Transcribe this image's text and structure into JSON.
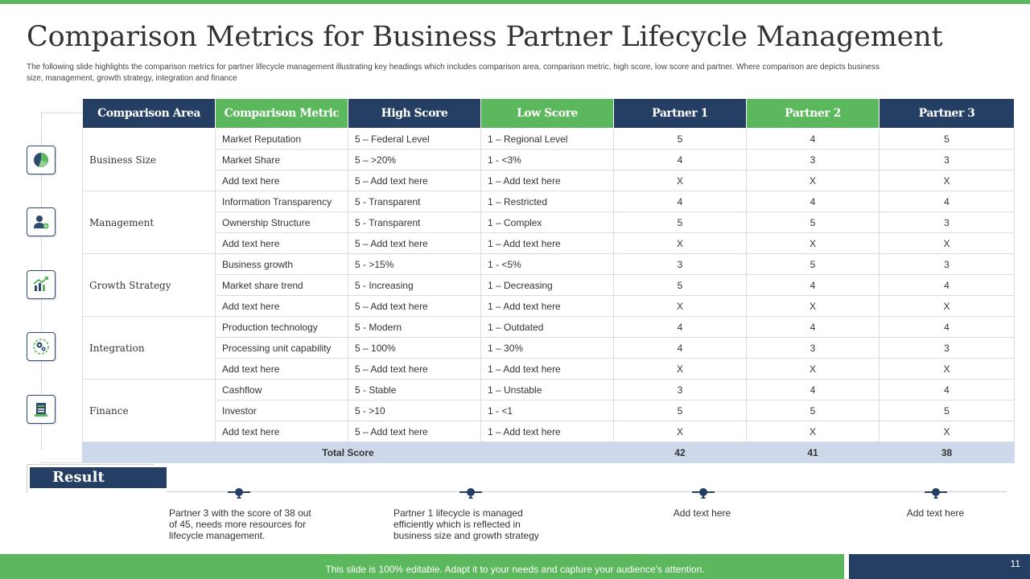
{
  "title": "Comparison Metrics for Business Partner Lifecycle Management",
  "subtitle": "The following slide highlights the comparison metrics for partner lifecycle management illustrating key headings which includes comparison area, comparison metric, high score, low score and partner. Where comparison are depicts business size, management,  growth strategy, integration and finance",
  "table": {
    "headers": [
      "Comparison Area",
      "Comparison Metric",
      "High Score",
      "Low Score",
      "Partner 1",
      "Partner 2",
      "Partner 3"
    ],
    "groups": [
      {
        "area": "Business Size",
        "rows": [
          {
            "metric": "Market Reputation",
            "high": "5 – Federal Level",
            "low": "1 – Regional Level",
            "p1": "5",
            "p2": "4",
            "p3": "5"
          },
          {
            "metric": "Market Share",
            "high": "5 – >20%",
            "low": "1 - <3%",
            "p1": "4",
            "p2": "3",
            "p3": "3"
          },
          {
            "metric": "Add text here",
            "high": "5 – Add text here",
            "low": "1 – Add text here",
            "p1": "X",
            "p2": "X",
            "p3": "X"
          }
        ]
      },
      {
        "area": "Management",
        "rows": [
          {
            "metric": "Information Transparency",
            "high": "5 - Transparent",
            "low": "1 – Restricted",
            "p1": "4",
            "p2": "4",
            "p3": "4"
          },
          {
            "metric": "Ownership Structure",
            "high": "5 - Transparent",
            "low": "1 – Complex",
            "p1": "5",
            "p2": "5",
            "p3": "3"
          },
          {
            "metric": "Add text here",
            "high": "5 – Add text here",
            "low": "1 – Add text here",
            "p1": "X",
            "p2": "X",
            "p3": "X"
          }
        ]
      },
      {
        "area": "Growth Strategy",
        "rows": [
          {
            "metric": "Business growth",
            "high": "5 - >15%",
            "low": "1 - <5%",
            "p1": "3",
            "p2": "5",
            "p3": "3"
          },
          {
            "metric": "Market share trend",
            "high": "5 - Increasing",
            "low": "1 – Decreasing",
            "p1": "5",
            "p2": "4",
            "p3": "4"
          },
          {
            "metric": "Add text here",
            "high": "5 – Add text here",
            "low": "1 – Add text here",
            "p1": "X",
            "p2": "X",
            "p3": "X"
          }
        ]
      },
      {
        "area": "Integration",
        "rows": [
          {
            "metric": "Production technology",
            "high": "5 - Modern",
            "low": "1 – Outdated",
            "p1": "4",
            "p2": "4",
            "p3": "4"
          },
          {
            "metric": "Processing unit capability",
            "high": "5 – 100%",
            "low": "1 – 30%",
            "p1": "4",
            "p2": "3",
            "p3": "3"
          },
          {
            "metric": "Add text here",
            "high": "5 – Add text here",
            "low": "1 – Add text here",
            "p1": "X",
            "p2": "X",
            "p3": "X"
          }
        ]
      },
      {
        "area": "Finance",
        "rows": [
          {
            "metric": "Cashflow",
            "high": "5 - Stable",
            "low": "1 – Unstable",
            "p1": "3",
            "p2": "4",
            "p3": "4"
          },
          {
            "metric": "Investor",
            "high": "5 -  >10",
            "low": "1 - <1",
            "p1": "5",
            "p2": "5",
            "p3": "5"
          },
          {
            "metric": "Add text here",
            "high": "5 – Add text here",
            "low": "1 – Add text here",
            "p1": "X",
            "p2": "X",
            "p3": "X"
          }
        ]
      }
    ],
    "total": {
      "label": "Total Score",
      "p1": "42",
      "p2": "41",
      "p3": "38"
    }
  },
  "icons": [
    "pie-chart-icon",
    "user-settings-icon",
    "growth-chart-icon",
    "gears-icon",
    "finance-document-icon"
  ],
  "result": {
    "label": "Result",
    "notes": [
      "Partner 3 with the score of 38 out of 45, needs more resources for lifecycle management.",
      "Partner 1 lifecycle is managed efficiently which is reflected in business size and growth strategy",
      "Add text here",
      "Add text here"
    ]
  },
  "footer": {
    "text": "This slide is 100% editable. Adapt it to your needs and capture your audience's attention.",
    "page": "11"
  },
  "colors": {
    "navy": "#243f63",
    "green": "#5cb85c",
    "total_bg": "#cdd9ea"
  }
}
